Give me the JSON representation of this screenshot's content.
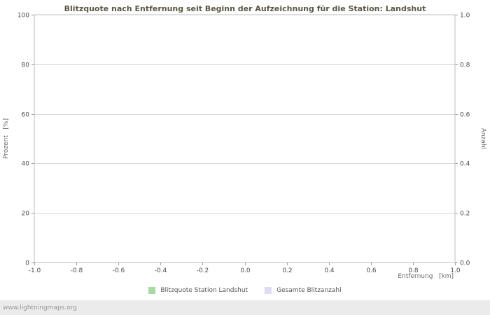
{
  "chart_data": {
    "type": "line",
    "title": "Blitzquote nach Entfernung seit Beginn der Aufzeichnung für die Station: Landshut",
    "xlabel": "Entfernung   [km]",
    "ylabel_left": "Prozent   [%]",
    "ylabel_right": "Anzahl",
    "x_axis": {
      "label": "Entfernung [km]",
      "min": -1.0,
      "max": 1.0,
      "ticks": [
        "-1.0",
        "-0.8",
        "-0.6",
        "-0.4",
        "-0.2",
        "0.0",
        "0.2",
        "0.4",
        "0.6",
        "0.8",
        "1.0"
      ]
    },
    "y_axis_left": {
      "label": "Prozent [%]",
      "min": 0,
      "max": 100,
      "ticks": [
        "0",
        "20",
        "40",
        "60",
        "80",
        "100"
      ]
    },
    "y_axis_right": {
      "label": "Anzahl",
      "min": 0.0,
      "max": 1.0,
      "ticks": [
        "0.0",
        "0.2",
        "0.4",
        "0.6",
        "0.8",
        "1.0"
      ]
    },
    "grid": "horizontal gridlines at left-axis tick positions",
    "legend_position": "bottom-center",
    "series": [
      {
        "name": "Blitzquote Station Landshut",
        "color": "#a8d8a8",
        "values": []
      },
      {
        "name": "Gesamte Blitzanzahl",
        "color": "#dcdcf5",
        "values": []
      }
    ]
  },
  "footer": {
    "link": "www.lightningmaps.org"
  }
}
